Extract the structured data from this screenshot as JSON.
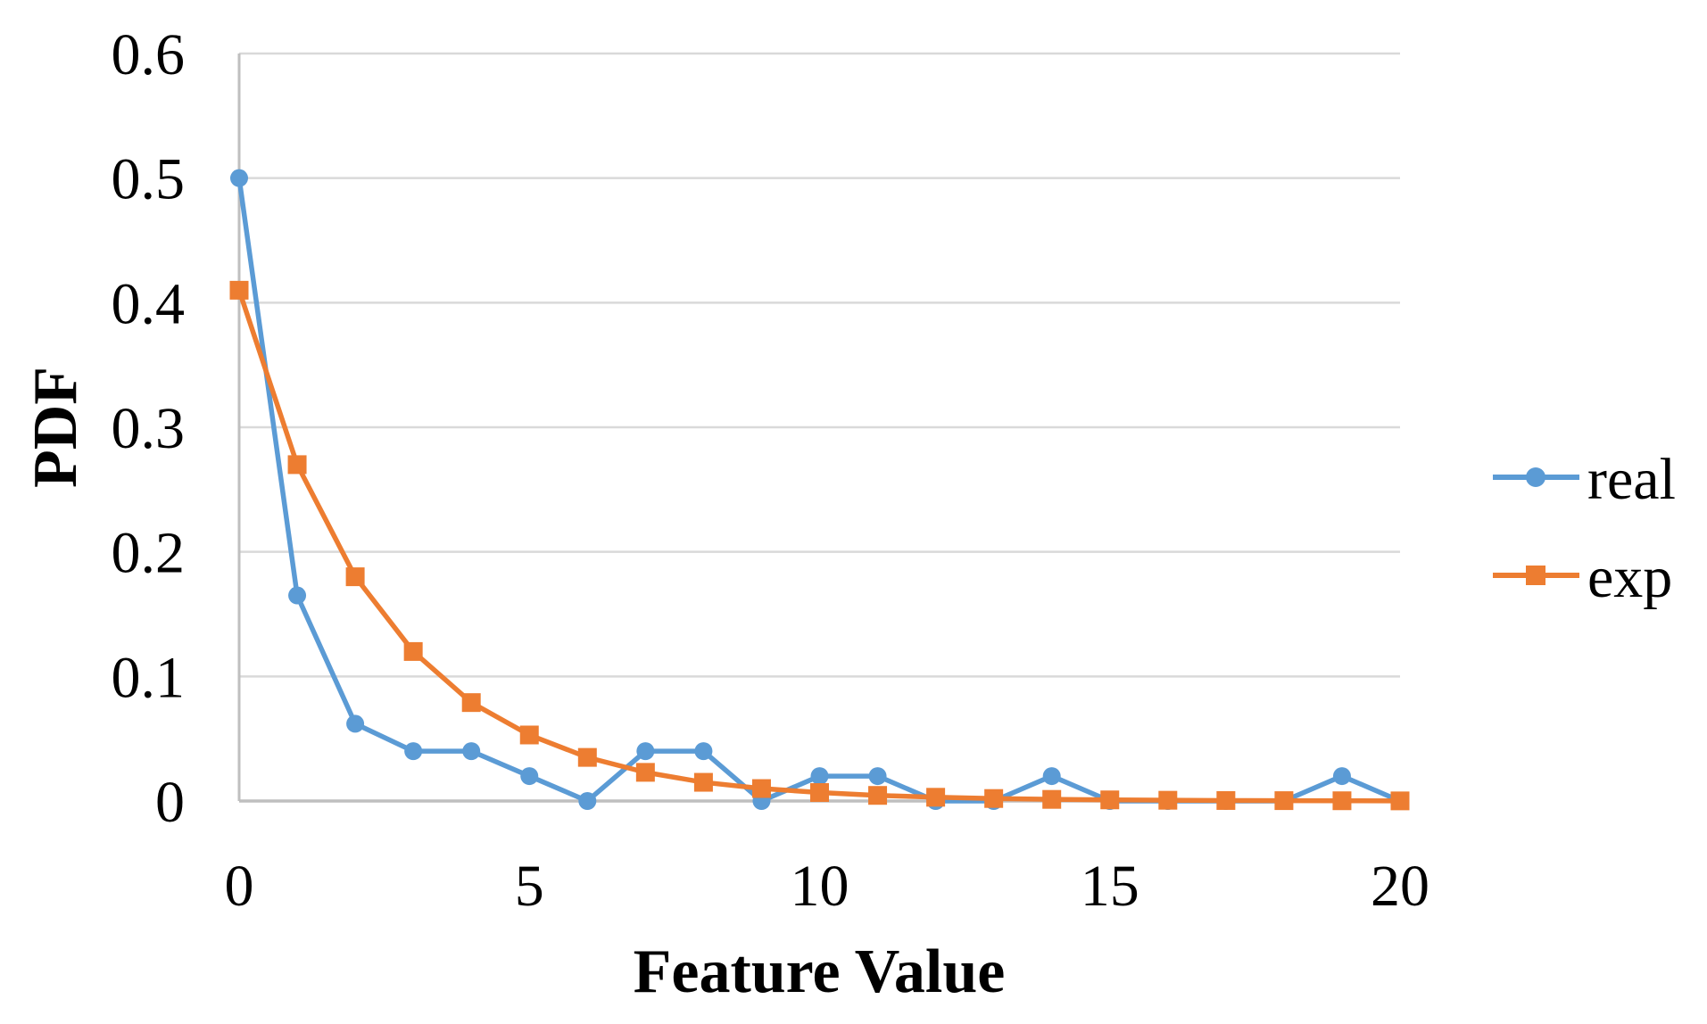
{
  "figure": {
    "background": "#FFFFFF"
  },
  "chart_data": {
    "type": "line",
    "title": "",
    "xlabel": "Feature Value",
    "ylabel": "PDF",
    "xlim": [
      0,
      20
    ],
    "ylim": [
      0,
      0.6
    ],
    "grid": "horizontal-only",
    "legend_position": "right-center",
    "x": [
      0,
      1,
      2,
      3,
      4,
      5,
      6,
      7,
      8,
      9,
      10,
      11,
      12,
      13,
      14,
      15,
      16,
      17,
      18,
      19,
      20
    ],
    "series": [
      {
        "name": "real",
        "color": "#5B9BD5",
        "marker": "circle",
        "values": [
          0.5,
          0.165,
          0.062,
          0.04,
          0.04,
          0.02,
          0,
          0.04,
          0.04,
          0,
          0.02,
          0.02,
          0,
          0,
          0.02,
          0,
          0,
          0,
          0,
          0.02,
          0
        ]
      },
      {
        "name": "exp",
        "color": "#ED7D31",
        "marker": "square",
        "values": [
          0.41,
          0.27,
          0.18,
          0.12,
          0.079,
          0.053,
          0.035,
          0.023,
          0.015,
          0.01,
          0.0068,
          0.0045,
          0.003,
          0.002,
          0.0013,
          0.0009,
          0.0006,
          0.0004,
          0.0003,
          0.0002,
          0.0001
        ]
      }
    ],
    "xticks": {
      "values": [
        0,
        5,
        10,
        15,
        20
      ],
      "labels": [
        "0",
        "5",
        "10",
        "15",
        "20"
      ]
    },
    "yticks": {
      "values": [
        0,
        0.1,
        0.2,
        0.3,
        0.4,
        0.5,
        0.6
      ],
      "labels": [
        "0",
        "0.1",
        "0.2",
        "0.3",
        "0.4",
        "0.5",
        "0.6"
      ]
    },
    "colors": {
      "gridline": "#D9D9D9",
      "axis_line": "#BFBFBF",
      "text": "#000000"
    }
  }
}
